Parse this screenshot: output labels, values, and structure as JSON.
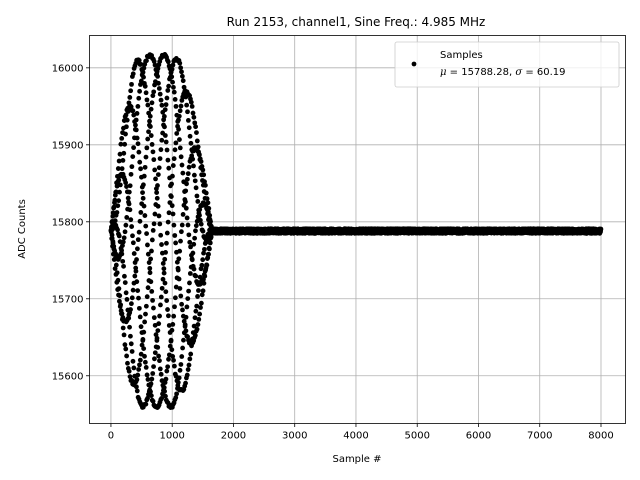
{
  "chart_data": {
    "type": "scatter",
    "title": "Run 2153, channel1, Sine Freq.: 4.985 MHz",
    "xlabel": "Sample #",
    "ylabel": "ADC Counts",
    "xlim": [
      -350,
      8400
    ],
    "ylim": [
      15538,
      16042
    ],
    "xticks": [
      0,
      1000,
      2000,
      3000,
      4000,
      5000,
      6000,
      7000,
      8000
    ],
    "yticks": [
      15600,
      15700,
      15800,
      15900,
      16000
    ],
    "grid": true,
    "legend": {
      "placement": "top-right",
      "entries": [
        {
          "label": "Samples",
          "detail": "μ = 15788.28, σ = 60.19"
        }
      ]
    },
    "series": [
      {
        "name": "Samples",
        "color": "#000000",
        "marker": "circle",
        "n_points": 8000,
        "baseline": 15788,
        "burst": {
          "start": 0,
          "end": 1650,
          "peak_amplitude": 228,
          "plateau_start": 500,
          "plateau_end": 1000,
          "period_samples": 1.0
        },
        "noise_amplitude": 3
      }
    ]
  }
}
